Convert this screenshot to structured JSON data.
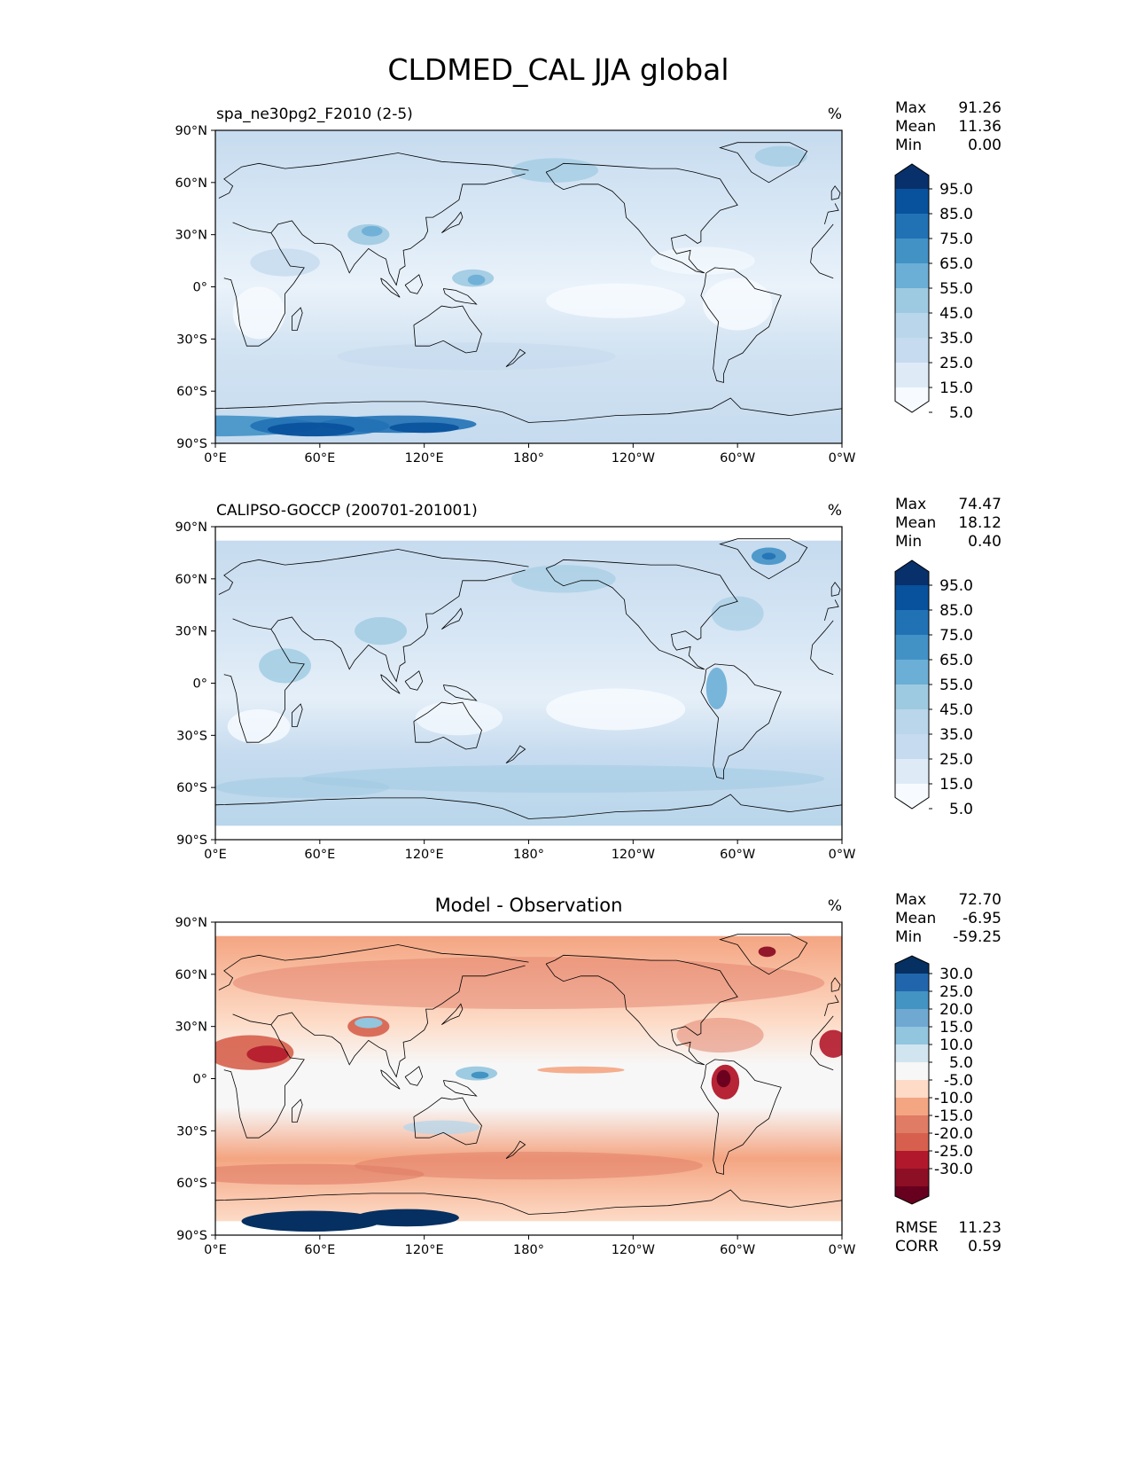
{
  "title": "CLDMED_CAL JJA global",
  "lon_ticks": [
    "0°E",
    "60°E",
    "120°E",
    "180°",
    "120°W",
    "60°W",
    "0°W"
  ],
  "lat_ticks": [
    "90°N",
    "60°N",
    "30°N",
    "0°",
    "30°S",
    "60°S",
    "90°S"
  ],
  "panels": [
    {
      "id": "model",
      "subtitle_left": "spa_ne30pg2_F2010 (2-5)",
      "subtitle_center": "",
      "units": "%",
      "stats": [
        {
          "label": "Max",
          "value": "91.26"
        },
        {
          "label": "Mean",
          "value": "11.36"
        },
        {
          "label": "Min",
          "value": "0.00"
        }
      ],
      "colorbar": {
        "labels": [
          "95.0",
          "85.0",
          "75.0",
          "65.0",
          "55.0",
          "45.0",
          "35.0",
          "25.0",
          "15.0",
          "5.0"
        ],
        "colors": [
          "#08306b",
          "#08519c",
          "#2171b5",
          "#4292c6",
          "#6baed6",
          "#9ecae1",
          "#b9d6ea",
          "#c6dbef",
          "#deebf7",
          "#f7fbff"
        ]
      },
      "footer_stats": []
    },
    {
      "id": "obs",
      "subtitle_left": "CALIPSO-GOCCP (200701-201001)",
      "subtitle_center": "",
      "units": "%",
      "stats": [
        {
          "label": "Max",
          "value": "74.47"
        },
        {
          "label": "Mean",
          "value": "18.12"
        },
        {
          "label": "Min",
          "value": "0.40"
        }
      ],
      "colorbar": {
        "labels": [
          "95.0",
          "85.0",
          "75.0",
          "65.0",
          "55.0",
          "45.0",
          "35.0",
          "25.0",
          "15.0",
          "5.0"
        ],
        "colors": [
          "#08306b",
          "#08519c",
          "#2171b5",
          "#4292c6",
          "#6baed6",
          "#9ecae1",
          "#b9d6ea",
          "#c6dbef",
          "#deebf7",
          "#f7fbff"
        ]
      },
      "footer_stats": []
    },
    {
      "id": "diff",
      "subtitle_left": "",
      "subtitle_center": "Model - Observation",
      "units": "%",
      "stats": [
        {
          "label": "Max",
          "value": "72.70"
        },
        {
          "label": "Mean",
          "value": "-6.95"
        },
        {
          "label": "Min",
          "value": "-59.25"
        }
      ],
      "colorbar": {
        "labels": [
          "30.0",
          "25.0",
          "20.0",
          "15.0",
          "10.0",
          "5.0",
          "-5.0",
          "-10.0",
          "-15.0",
          "-20.0",
          "-25.0",
          "-30.0"
        ],
        "colors": [
          "#053061",
          "#2166ac",
          "#4393c3",
          "#6fa9d2",
          "#92c5de",
          "#d1e5f0",
          "#f7f7f7",
          "#fddbc7",
          "#f4a582",
          "#e07b65",
          "#d6604d",
          "#b2182b",
          "#8d0f25",
          "#67001f"
        ]
      },
      "footer_stats": [
        {
          "label": "RMSE",
          "value": "11.23"
        },
        {
          "label": "CORR",
          "value": "0.59"
        }
      ]
    }
  ]
}
